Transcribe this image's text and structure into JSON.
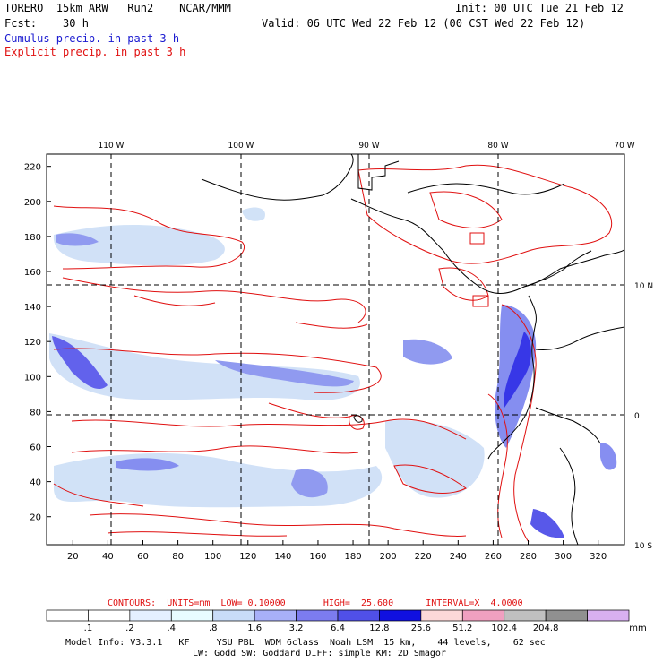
{
  "header": {
    "model": "TORERO  15km ARW   Run2    NCAR/MMM",
    "init": "Init: 00 UTC Tue 21 Feb 12",
    "fcst": "Fcst:    30 h",
    "valid": "Valid: 06 UTC Wed 22 Feb 12 (00 CST Wed 22 Feb 12)",
    "field1": "Cumulus precip. in past 3 h",
    "field2": "Explicit precip. in past 3 h"
  },
  "map": {
    "lon_labels": [
      "110 W",
      "100 W",
      "90 W",
      "80 W",
      "70 W"
    ],
    "lat_labels": [
      "10 N",
      "0",
      "10 S"
    ],
    "x_ticks": [
      "20",
      "40",
      "60",
      "80",
      "100",
      "120",
      "140",
      "160",
      "180",
      "200",
      "220",
      "240",
      "260",
      "280",
      "300",
      "320"
    ],
    "y_ticks": [
      "20",
      "40",
      "60",
      "80",
      "100",
      "120",
      "140",
      "160",
      "180",
      "200",
      "220"
    ],
    "colors": {
      "contour": "#e01010",
      "coast": "#000000",
      "precip_light": "#cfe0f7",
      "precip_mid": "#7f88f0",
      "precip_heavy": "#3030e8"
    }
  },
  "contour_info": "CONTOURS:  UNITS=mm  LOW= 0.10000       HIGH=  25.600      INTERVAL=X  4.0000",
  "colorbar": {
    "labels": [
      ".1",
      ".2",
      ".4",
      ".8",
      "1.6",
      "3.2",
      "6.4",
      "12.8",
      "25.6",
      "51.2",
      "102.4",
      "204.8"
    ],
    "unit": "mm",
    "colors": [
      "#ffffff",
      "#ffffff",
      "#e4f0ff",
      "#e8fcff",
      "#c8dcf8",
      "#a8b0f8",
      "#7c7cf0",
      "#5050e8",
      "#1010e0",
      "#fcd8d8",
      "#f0a0c0",
      "#c0c0c0",
      "#909090",
      "#d8b0f0"
    ]
  },
  "footer": {
    "line1": "Model Info: V3.3.1   KF     YSU PBL  WDM 6class  Noah LSM  15 km,    44 levels,    62 sec",
    "line2": "LW: Godd SW: Goddard DIFF: simple KM: 2D Smagor"
  }
}
